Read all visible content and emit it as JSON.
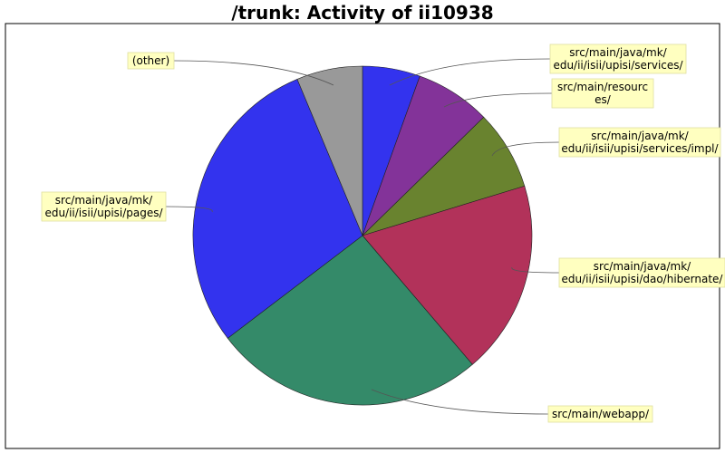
{
  "chart_data": {
    "type": "pie",
    "title": "/trunk: Activity of ii10938",
    "slices": [
      {
        "label": "src/main/java/mk/\nedu/ii/isii/upisi/services/",
        "value": 5.5,
        "color": "#3333ee"
      },
      {
        "label": "src/main/resourc\nes/",
        "value": 7.2,
        "color": "#833399"
      },
      {
        "label": "src/main/java/mk/\nedu/ii/isii/upisi/services/impl/",
        "value": 7.6,
        "color": "#69832f"
      },
      {
        "label": "src/main/java/mk/\nedu/ii/isii/upisi/dao/hibernate/",
        "value": 18.5,
        "color": "#b2325a"
      },
      {
        "label": "src/main/webapp/",
        "value": 25.9,
        "color": "#348a69"
      },
      {
        "label": "src/main/java/mk/\nedu/ii/isii/upisi/pages/",
        "value": 29.1,
        "color": "#3333ee"
      },
      {
        "label": "(other)",
        "value": 6.3,
        "color": "#999999"
      }
    ]
  }
}
